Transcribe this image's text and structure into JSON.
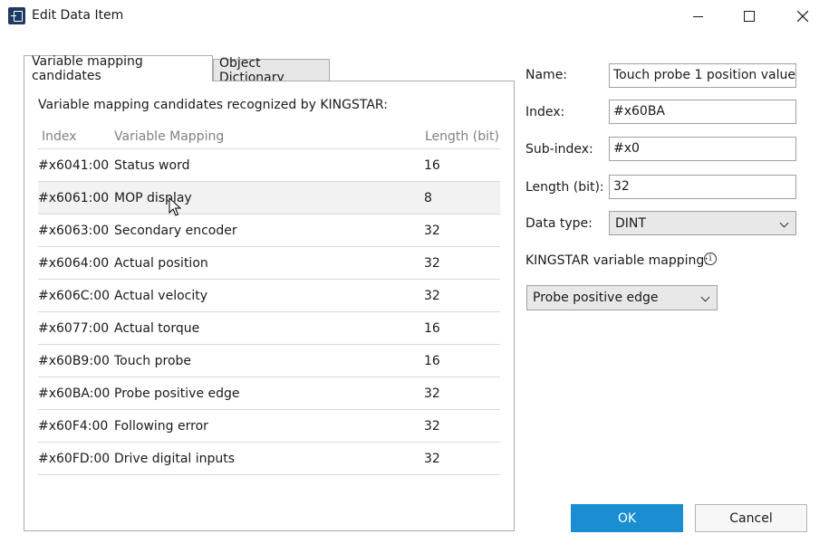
{
  "window": {
    "title": "Edit Data Item"
  },
  "tabs": [
    {
      "label": "Variable mapping candidates"
    },
    {
      "label": "Object Dictionary"
    }
  ],
  "panel": {
    "heading": "Variable mapping candidates recognized by KINGSTAR:",
    "columns": {
      "index": "Index",
      "variable": "Variable Mapping",
      "length": "Length (bit)"
    },
    "rows": [
      {
        "index": "#x6041:00",
        "variable": "Status word",
        "length": "16"
      },
      {
        "index": "#x6061:00",
        "variable": "MOP display",
        "length": "8"
      },
      {
        "index": "#x6063:00",
        "variable": "Secondary encoder",
        "length": "32"
      },
      {
        "index": "#x6064:00",
        "variable": "Actual position",
        "length": "32"
      },
      {
        "index": "#x606C:00",
        "variable": "Actual velocity",
        "length": "32"
      },
      {
        "index": "#x6077:00",
        "variable": "Actual torque",
        "length": "16"
      },
      {
        "index": "#x60B9:00",
        "variable": "Touch probe",
        "length": "16"
      },
      {
        "index": "#x60BA:00",
        "variable": "Probe positive edge",
        "length": "32"
      },
      {
        "index": "#x60F4:00",
        "variable": "Following error",
        "length": "32"
      },
      {
        "index": "#x60FD:00",
        "variable": "Drive digital inputs",
        "length": "32"
      }
    ]
  },
  "form": {
    "name": {
      "label": "Name:",
      "value": "Touch probe 1 position value"
    },
    "index": {
      "label": "Index:",
      "value": "#x60BA"
    },
    "subindex": {
      "label": "Sub-index:",
      "value": "#x0"
    },
    "length": {
      "label": "Length (bit):",
      "value": "32"
    },
    "datatype": {
      "label": "Data type:",
      "value": "DINT"
    },
    "mapping": {
      "label": "KINGSTAR variable mapping:",
      "value": "Probe positive edge"
    }
  },
  "buttons": {
    "ok": "OK",
    "cancel": "Cancel"
  },
  "colors": {
    "accent": "#1a8ed1",
    "title_icon": "#1e3a64"
  }
}
